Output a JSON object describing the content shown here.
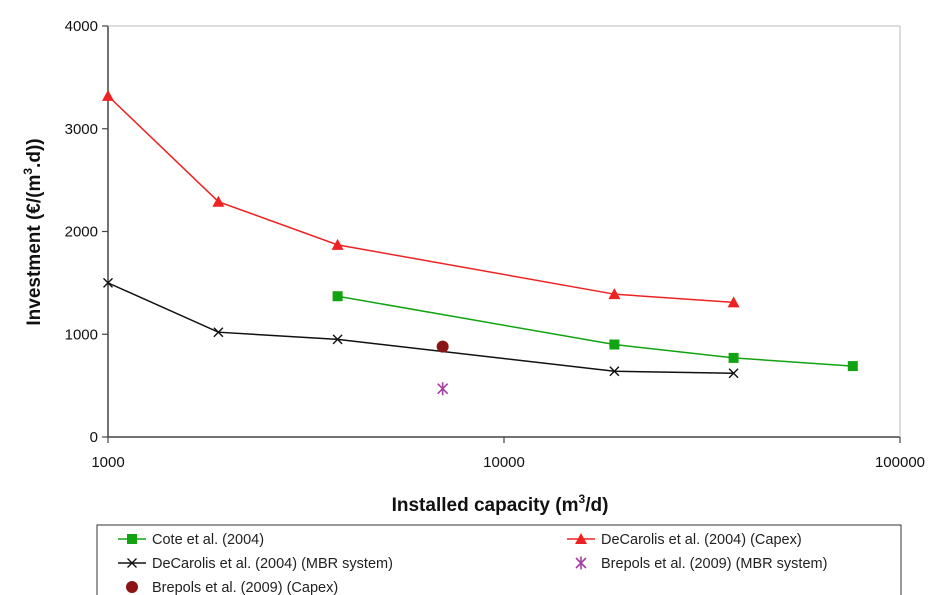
{
  "chart_data": {
    "type": "line",
    "x_scale": "log",
    "xlim": [
      1000,
      100000
    ],
    "ylim": [
      0,
      4000
    ],
    "x_ticks": [
      1000,
      10000,
      100000
    ],
    "y_ticks": [
      0,
      1000,
      2000,
      3000,
      4000
    ],
    "x_tick_labels": [
      "1000",
      "10000",
      "100000"
    ],
    "y_tick_labels": [
      "0",
      "1000",
      "2000",
      "3000",
      "4000"
    ],
    "xlabel": {
      "pre": "Installed capacity (m",
      "sup": "3",
      "post": "/d)"
    },
    "ylabel": {
      "pre": "Investment (€/(m",
      "sup": "3",
      "post": ".d))"
    },
    "grid": false,
    "legend_position": "bottom",
    "series": [
      {
        "name": "Cote et al. (2004)",
        "color": "#11a311",
        "marker": "square",
        "line": true,
        "points": [
          [
            3800,
            1370
          ],
          [
            19000,
            900
          ],
          [
            38000,
            770
          ],
          [
            76000,
            690
          ]
        ]
      },
      {
        "name": "DeCarolis et al. (2004) (Capex)",
        "color": "#ee2222",
        "marker": "triangle",
        "line": true,
        "points": [
          [
            1000,
            3320
          ],
          [
            1900,
            2290
          ],
          [
            3800,
            1870
          ],
          [
            19000,
            1390
          ],
          [
            38000,
            1310
          ]
        ]
      },
      {
        "name": "DeCarolis et al. (2004) (MBR system)",
        "color": "#111111",
        "marker": "x",
        "line": true,
        "points": [
          [
            1000,
            1500
          ],
          [
            1900,
            1020
          ],
          [
            3800,
            950
          ],
          [
            19000,
            640
          ],
          [
            38000,
            620
          ]
        ]
      },
      {
        "name": "Brepols et al. (2009) (MBR system)",
        "color": "#a43fa4",
        "marker": "asterisk",
        "line": false,
        "points": [
          [
            7000,
            470
          ]
        ]
      },
      {
        "name": "Brepols et al. (2009) (Capex)",
        "color": "#8b1515",
        "marker": "circle",
        "line": false,
        "points": [
          [
            7000,
            880
          ]
        ]
      }
    ]
  }
}
